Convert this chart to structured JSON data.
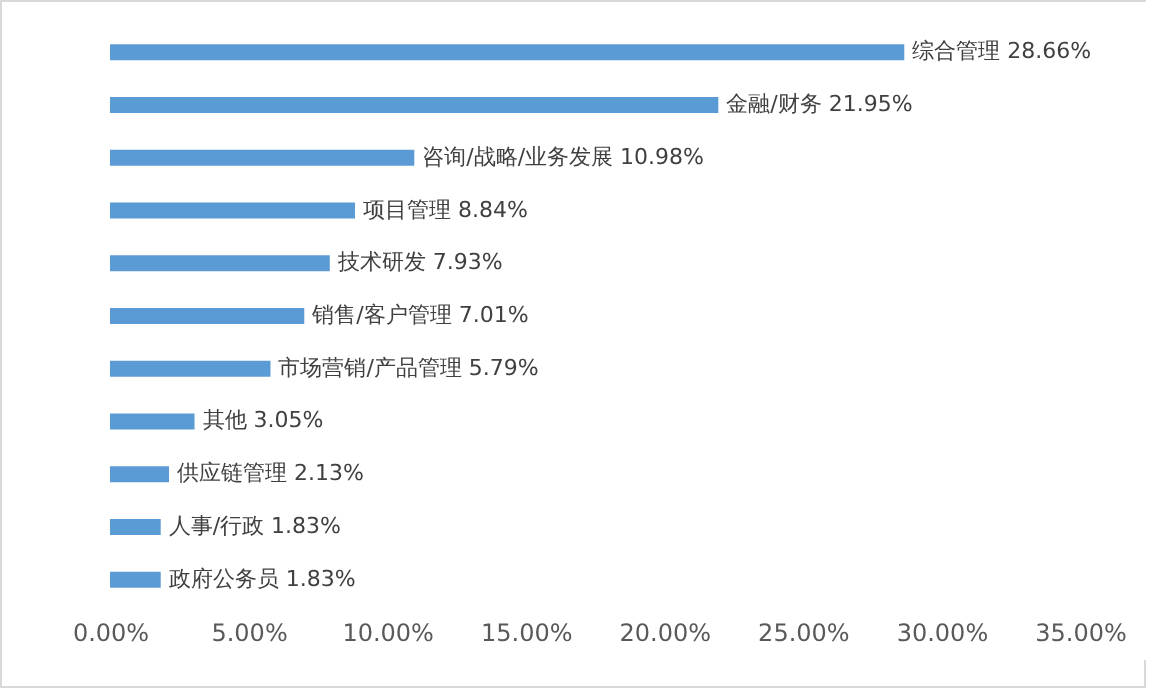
{
  "chart_data": {
    "type": "bar",
    "orientation": "horizontal",
    "tick_labels": "x",
    "categories": [
      "综合管理",
      "金融/财务",
      "咨询/战略/业务发展",
      "项目管理",
      "技术研发",
      "销售/客户管理",
      "市场营销/产品管理",
      "其他",
      "供应链管理",
      "人事/行政",
      "政府公务员"
    ],
    "values": [
      28.66,
      21.95,
      10.98,
      8.84,
      7.93,
      7.01,
      5.79,
      3.05,
      2.13,
      1.83,
      1.83
    ],
    "value_labels": [
      "28.66%",
      "21.95%",
      "10.98%",
      "8.84%",
      "7.93%",
      "7.01%",
      "5.79%",
      "3.05%",
      "2.13%",
      "1.83%",
      "1.83%"
    ],
    "color": "#5b9bd5",
    "xlim": [
      0,
      35
    ],
    "xticks": [
      {
        "value": 0,
        "label": "0.00%"
      },
      {
        "value": 5,
        "label": "5.00%"
      },
      {
        "value": 10,
        "label": "10.00%"
      },
      {
        "value": 15,
        "label": "15.00%"
      },
      {
        "value": 20,
        "label": "20.00%"
      },
      {
        "value": 25,
        "label": "25.00%"
      },
      {
        "value": 30,
        "label": "30.00%"
      },
      {
        "value": 35,
        "label": "35.00%"
      }
    ],
    "grid": false
  }
}
